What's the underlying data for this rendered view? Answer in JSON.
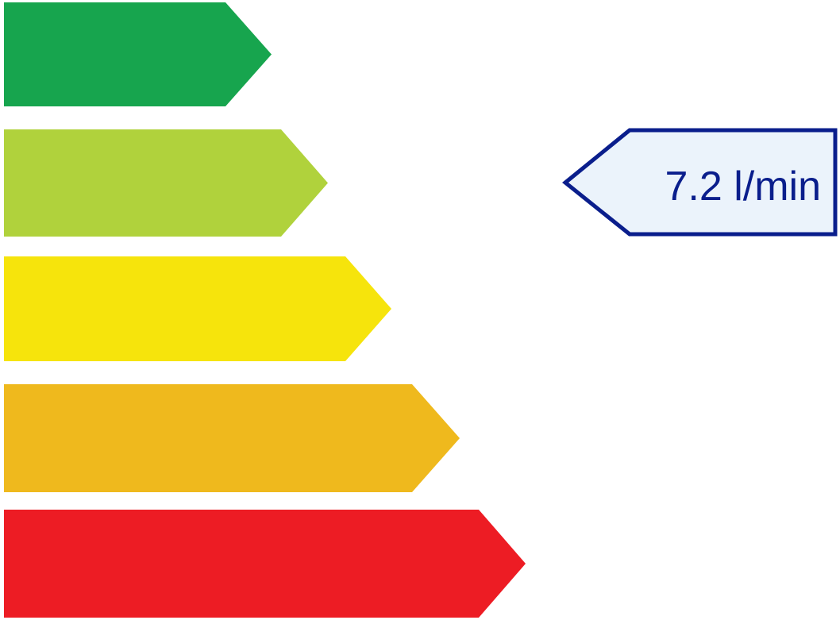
{
  "rating_bars": [
    {
      "color": "#17A54E"
    },
    {
      "color": "#B0D23C"
    },
    {
      "color": "#F6E40C"
    },
    {
      "color": "#EFB91D"
    },
    {
      "color": "#ED1C24"
    }
  ],
  "indicator": {
    "value_text": "7.2 l/min",
    "border_color": "#0A1E8C",
    "fill_color": "#EBF3FB",
    "text_color": "#0A1E8C",
    "points_to_class_index": 1
  }
}
